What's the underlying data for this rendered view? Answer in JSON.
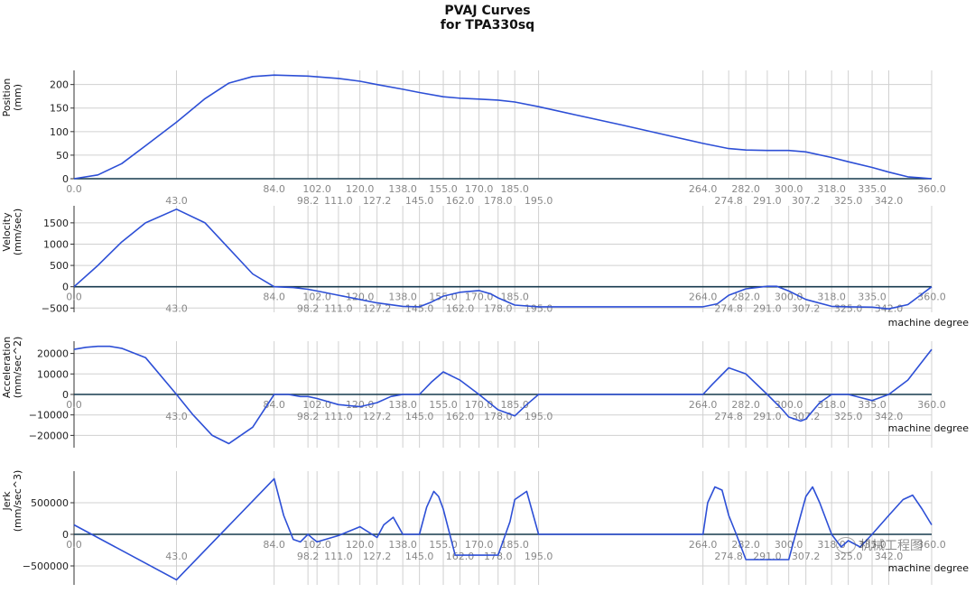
{
  "figure": {
    "title_line1": "PVAJ Curves",
    "title_line2": "for TPA330sq",
    "xlabel": "machine degree"
  },
  "watermark": {
    "text": "机械工程图"
  },
  "chart_data": [
    {
      "type": "line",
      "ylabel": "Position (mm)",
      "ylabel_lines": [
        "Position",
        "(mm)"
      ],
      "xlim": [
        0,
        360
      ],
      "ylim": [
        0,
        230
      ],
      "yticks": [
        0,
        50,
        100,
        150,
        200
      ],
      "ytick_labels": [
        "0",
        "50",
        "100",
        "150",
        "200"
      ],
      "xticks_row1": [
        0.0,
        84.0,
        102.0,
        120.0,
        138.0,
        155.0,
        170.0,
        185.0,
        264.0,
        282.0,
        300.0,
        318.0,
        335.0,
        360.0
      ],
      "xticks_row2": [
        43.0,
        98.2,
        111.0,
        127.2,
        145.0,
        162.0,
        178.0,
        195.0,
        274.8,
        291.0,
        307.2,
        325.0,
        342.0
      ],
      "show_xlabel": false,
      "series": [
        {
          "color": "#2d4fd6",
          "x": [
            0,
            10,
            20,
            30,
            43,
            55,
            65,
            75,
            84,
            98.2,
            111,
            120,
            127.2,
            138,
            145,
            155,
            162,
            170,
            178,
            185,
            195,
            210,
            230,
            250,
            264,
            274.8,
            282,
            291,
            300,
            307.2,
            318,
            325,
            335,
            342,
            350,
            360
          ],
          "y": [
            0,
            8,
            32,
            70,
            120,
            170,
            203,
            217,
            220,
            218,
            213,
            207,
            200,
            190,
            183,
            174,
            171,
            169,
            167,
            163,
            153,
            136,
            114,
            91,
            75,
            64,
            61,
            60,
            60,
            57,
            45,
            36,
            24,
            14,
            4,
            0
          ]
        }
      ]
    },
    {
      "type": "line",
      "ylabel": "Velocity (mm/sec)",
      "ylabel_lines": [
        "Velocity",
        "(mm/sec)"
      ],
      "xlim": [
        0,
        360
      ],
      "ylim": [
        -600,
        1900
      ],
      "yticks": [
        -500,
        0,
        500,
        1000,
        1500
      ],
      "ytick_labels": [
        "−500",
        "0",
        "500",
        "1000",
        "1500"
      ],
      "xticks_row1": [
        0.0,
        84.0,
        102.0,
        120.0,
        138.0,
        155.0,
        170.0,
        185.0,
        264.0,
        282.0,
        300.0,
        318.0,
        335.0,
        360.0
      ],
      "xticks_row2": [
        43.0,
        98.2,
        111.0,
        127.2,
        145.0,
        162.0,
        178.0,
        195.0,
        274.8,
        291.0,
        307.2,
        325.0,
        342.0
      ],
      "show_xlabel": true,
      "series": [
        {
          "color": "#2d4fd6",
          "x": [
            0,
            10,
            20,
            30,
            43,
            55,
            65,
            75,
            84,
            92,
            98.2,
            102,
            111,
            120,
            127.2,
            138,
            145,
            150,
            155,
            162,
            170,
            175,
            178,
            185,
            195,
            230,
            264,
            270,
            274.8,
            282,
            291,
            295,
            300,
            307.2,
            318,
            325,
            335,
            342,
            350,
            360
          ],
          "y": [
            0,
            500,
            1050,
            1500,
            1820,
            1500,
            900,
            300,
            0,
            -20,
            -60,
            -100,
            -200,
            -300,
            -380,
            -460,
            -470,
            -360,
            -220,
            -130,
            -90,
            -170,
            -260,
            -430,
            -470,
            -470,
            -470,
            -400,
            -200,
            -50,
            10,
            10,
            -100,
            -300,
            -460,
            -470,
            -480,
            -520,
            -420,
            0
          ]
        }
      ]
    },
    {
      "type": "line",
      "ylabel": "Acceleration (mm/sec^2)",
      "ylabel_lines": [
        "Acceleration",
        "(mm/sec^2)"
      ],
      "xlim": [
        0,
        360
      ],
      "ylim": [
        -26000,
        26000
      ],
      "yticks": [
        -20000,
        -10000,
        0,
        10000,
        20000
      ],
      "ytick_labels": [
        "−20000",
        "−10000",
        "0",
        "10000",
        "20000"
      ],
      "xticks_row1": [
        0.0,
        84.0,
        102.0,
        120.0,
        138.0,
        155.0,
        170.0,
        185.0,
        264.0,
        282.0,
        300.0,
        318.0,
        335.0,
        360.0
      ],
      "xticks_row2": [
        43.0,
        98.2,
        111.0,
        127.2,
        145.0,
        162.0,
        178.0,
        195.0,
        274.8,
        291.0,
        307.2,
        325.0,
        342.0
      ],
      "show_xlabel": true,
      "series": [
        {
          "color": "#2d4fd6",
          "x": [
            0,
            5,
            10,
            15,
            20,
            30,
            43,
            50,
            58,
            65,
            75,
            84,
            90,
            95,
            98.2,
            102,
            111,
            120,
            127.2,
            133,
            138,
            145,
            150,
            155,
            162,
            170,
            178,
            185,
            190,
            195,
            230,
            264,
            268,
            274.8,
            282,
            291,
            297,
            300,
            305,
            307.2,
            313,
            318,
            325,
            330,
            335,
            342,
            350,
            360
          ],
          "y": [
            22000,
            23000,
            23500,
            23500,
            22500,
            18000,
            0,
            -10000,
            -20000,
            -24000,
            -16000,
            0,
            0,
            -1000,
            -1000,
            -2000,
            -5000,
            -6000,
            -4000,
            -1000,
            0,
            0,
            6000,
            11000,
            7000,
            0,
            -7500,
            -10500,
            -5000,
            0,
            0,
            0,
            5000,
            13000,
            10000,
            0,
            -7000,
            -11000,
            -13000,
            -12000,
            -4000,
            0,
            0,
            -1500,
            -3000,
            0,
            7000,
            22000
          ]
        }
      ]
    },
    {
      "type": "line",
      "ylabel": "Jerk (mm/sec^3)",
      "ylabel_lines": [
        "Jerk",
        "(mm/sec^3)"
      ],
      "xlim": [
        0,
        360
      ],
      "ylim": [
        -800000,
        1000000
      ],
      "yticks": [
        -500000,
        0,
        500000
      ],
      "ytick_labels": [
        "−500000",
        "0",
        "500000"
      ],
      "xticks_row1": [
        0.0,
        84.0,
        102.0,
        120.0,
        138.0,
        155.0,
        170.0,
        185.0,
        264.0,
        282.0,
        300.0,
        318.0,
        335.0,
        360.0
      ],
      "xticks_row2": [
        43.0,
        98.2,
        111.0,
        127.2,
        145.0,
        162.0,
        178.0,
        195.0,
        274.8,
        291.0,
        307.2,
        325.0,
        342.0
      ],
      "show_xlabel": true,
      "series": [
        {
          "color": "#2d4fd6",
          "x": [
            0,
            43,
            84,
            88,
            92,
            95,
            98.2,
            100,
            102,
            111,
            120,
            127.2,
            130,
            134,
            138,
            145,
            148,
            151,
            153,
            155,
            160,
            162,
            170,
            178,
            183,
            185,
            190,
            195,
            264,
            266,
            269,
            272,
            274.8,
            278,
            282,
            291,
            300,
            305,
            307.2,
            310,
            313,
            318,
            322,
            325,
            330,
            335,
            342,
            348,
            352,
            356,
            360
          ],
          "y": [
            150000,
            -720000,
            880000,
            300000,
            -80000,
            -120000,
            0,
            -60000,
            -120000,
            -20000,
            120000,
            -50000,
            150000,
            270000,
            0,
            0,
            430000,
            680000,
            600000,
            400000,
            -330000,
            -330000,
            -330000,
            -330000,
            200000,
            550000,
            680000,
            0,
            0,
            500000,
            750000,
            700000,
            300000,
            0,
            -400000,
            -400000,
            -400000,
            300000,
            600000,
            750000,
            500000,
            0,
            -200000,
            -100000,
            -200000,
            0,
            300000,
            550000,
            620000,
            400000,
            150000
          ]
        }
      ]
    }
  ]
}
